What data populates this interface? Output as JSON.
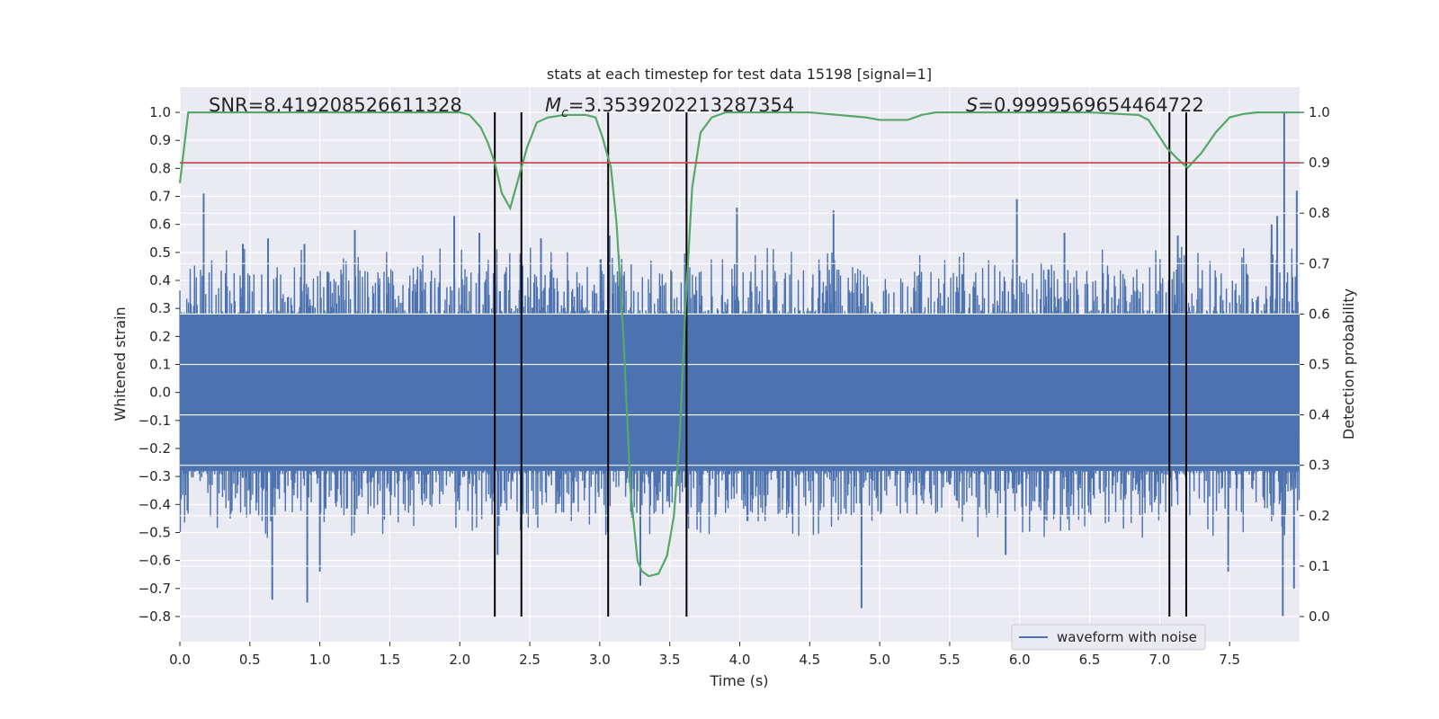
{
  "chart_data": {
    "type": "line",
    "title": "stats at each timestep for test data 15198 [signal=1]",
    "xlabel": "Time (s)",
    "ylabel": "Whitened strain",
    "ylabel_right": "Detection probability",
    "xlim": [
      0.0,
      8.0
    ],
    "ylim": [
      -0.89,
      1.09
    ],
    "ylim_right": [
      -0.05,
      1.05
    ],
    "grid": true,
    "xticks": [
      0.0,
      0.5,
      1.0,
      1.5,
      2.0,
      2.5,
      3.0,
      3.5,
      4.0,
      4.5,
      5.0,
      5.5,
      6.0,
      6.5,
      7.0,
      7.5
    ],
    "xtick_labels": [
      "0.0",
      "0.5",
      "1.0",
      "1.5",
      "2.0",
      "2.5",
      "3.0",
      "3.5",
      "4.0",
      "4.5",
      "5.0",
      "5.5",
      "6.0",
      "6.5",
      "7.0",
      "7.5"
    ],
    "yticks": [
      -0.8,
      -0.7,
      -0.6,
      -0.5,
      -0.4,
      -0.3,
      -0.2,
      -0.1,
      0.0,
      0.1,
      0.2,
      0.3,
      0.4,
      0.5,
      0.6,
      0.7,
      0.8,
      0.9,
      1.0
    ],
    "ytick_labels": [
      "−0.8",
      "−0.7",
      "−0.6",
      "−0.5",
      "−0.4",
      "−0.3",
      "−0.2",
      "−0.1",
      "0.0",
      "0.1",
      "0.2",
      "0.3",
      "0.4",
      "0.5",
      "0.6",
      "0.7",
      "0.8",
      "0.9",
      "1.0"
    ],
    "yticks_right": [
      0.0,
      0.1,
      0.2,
      0.3,
      0.4,
      0.5,
      0.6,
      0.7,
      0.8,
      0.9,
      1.0
    ],
    "ytick_labels_right": [
      "0.0",
      "0.1",
      "0.2",
      "0.3",
      "0.4",
      "0.5",
      "0.6",
      "0.7",
      "0.8",
      "0.9",
      "1.0"
    ],
    "annotations": {
      "snr": "SNR=8.419208526611328",
      "mc_symbol": "M",
      "mc_sub": "c",
      "mc_value": "=3.3539202213287354",
      "s_symbol": "S",
      "s_value": "=0.9999569654464722"
    },
    "legend": {
      "label": "waveform with noise",
      "placement": "lower-right"
    },
    "series": [
      {
        "name": "waveform with noise",
        "axis": "left",
        "color": "#4c72b0",
        "style": "noise",
        "band_min": -0.28,
        "band_max": 0.28,
        "peaks_pos": [
          [
            0.17,
            0.71
          ],
          [
            0.45,
            0.53
          ],
          [
            0.63,
            0.55
          ],
          [
            0.89,
            0.53
          ],
          [
            1.25,
            0.58
          ],
          [
            1.96,
            0.63
          ],
          [
            2.14,
            0.57
          ],
          [
            2.58,
            0.55
          ],
          [
            3.07,
            0.56
          ],
          [
            3.98,
            0.66
          ],
          [
            4.67,
            0.65
          ],
          [
            5.98,
            0.69
          ],
          [
            6.32,
            0.57
          ],
          [
            7.13,
            0.56
          ],
          [
            7.8,
            0.6
          ],
          [
            7.84,
            0.63
          ],
          [
            7.89,
            1.0
          ],
          [
            7.98,
            0.72
          ]
        ],
        "peaks_neg": [
          [
            0.66,
            -0.74
          ],
          [
            0.91,
            -0.75
          ],
          [
            1.0,
            -0.64
          ],
          [
            2.27,
            -0.58
          ],
          [
            3.29,
            -0.69
          ],
          [
            4.87,
            -0.77
          ],
          [
            5.9,
            -0.58
          ],
          [
            7.49,
            -0.64
          ],
          [
            7.88,
            -0.8
          ],
          [
            7.96,
            -0.7
          ]
        ]
      },
      {
        "name": "detection probability",
        "axis": "right",
        "color": "#55a868",
        "x": [
          0.0,
          0.06,
          0.15,
          0.5,
          1.0,
          1.5,
          2.0,
          2.07,
          2.15,
          2.2,
          2.25,
          2.3,
          2.36,
          2.42,
          2.48,
          2.55,
          2.63,
          2.75,
          2.9,
          2.97,
          3.02,
          3.08,
          3.12,
          3.17,
          3.22,
          3.27,
          3.3,
          3.35,
          3.42,
          3.48,
          3.53,
          3.57,
          3.61,
          3.66,
          3.72,
          3.8,
          3.9,
          4.1,
          4.5,
          4.9,
          5.0,
          5.2,
          5.3,
          5.4,
          6.0,
          6.5,
          6.85,
          6.92,
          6.98,
          7.05,
          7.12,
          7.2,
          7.3,
          7.4,
          7.5,
          7.6,
          7.7,
          8.0
        ],
        "y": [
          0.86,
          1.0,
          1.0,
          1.0,
          1.0,
          1.0,
          1.0,
          0.995,
          0.97,
          0.94,
          0.9,
          0.84,
          0.81,
          0.87,
          0.93,
          0.98,
          0.99,
          0.995,
          0.995,
          0.99,
          0.95,
          0.89,
          0.78,
          0.55,
          0.25,
          0.11,
          0.09,
          0.08,
          0.085,
          0.12,
          0.2,
          0.35,
          0.6,
          0.85,
          0.96,
          0.99,
          1.0,
          1.0,
          1.0,
          0.99,
          0.985,
          0.985,
          0.995,
          1.0,
          1.0,
          1.0,
          0.995,
          0.985,
          0.96,
          0.93,
          0.91,
          0.89,
          0.92,
          0.96,
          0.99,
          0.997,
          1.0,
          1.0
        ]
      },
      {
        "name": "threshold",
        "axis": "right",
        "color": "#c44e52",
        "x": [
          0.0,
          8.0
        ],
        "y": [
          0.9,
          0.9
        ]
      }
    ],
    "vlines": [
      2.25,
      2.44,
      3.06,
      3.62,
      7.07,
      7.19
    ],
    "vlines_range": [
      -0.8,
      1.0
    ],
    "vline_color": "#000000",
    "background_color": "#eaeaf2",
    "grid_color": "#ffffff"
  }
}
